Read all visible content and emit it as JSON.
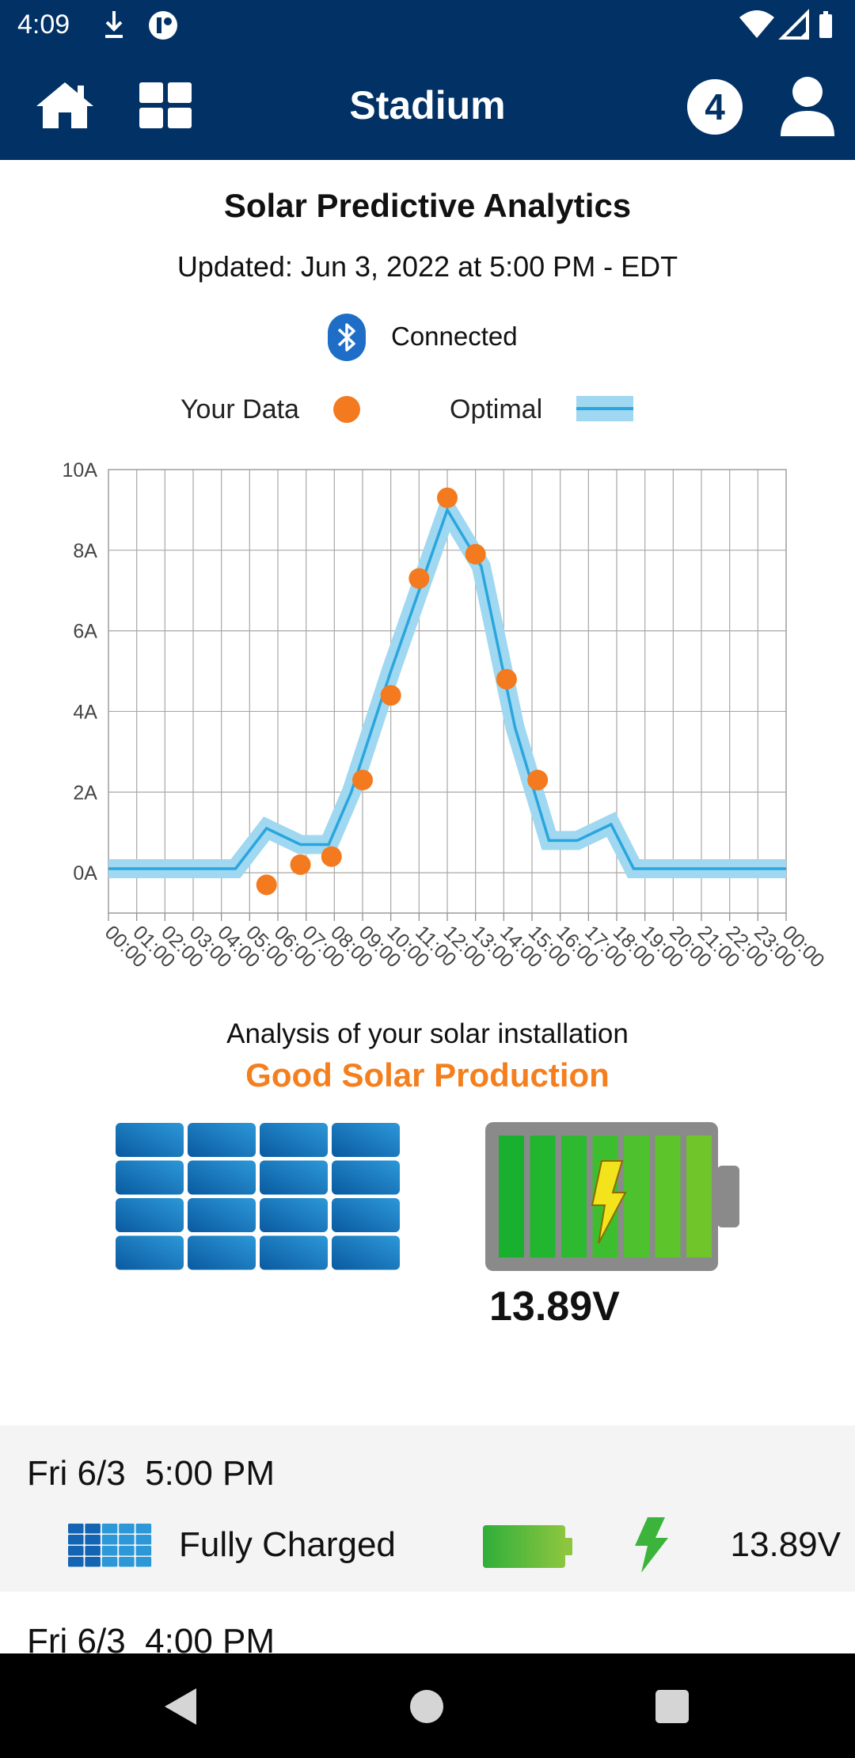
{
  "status_bar": {
    "time": "4:09",
    "left_icons": [
      "download-icon",
      "app-notification-icon"
    ],
    "right_icons": [
      "wifi-icon",
      "cell-signal-icon",
      "battery-icon"
    ]
  },
  "app_bar": {
    "title": "Stadium",
    "notification_count": "4",
    "icons": [
      "home-icon",
      "grid-icon",
      "user-icon"
    ]
  },
  "header": {
    "title": "Solar Predictive Analytics",
    "updated": "Updated: Jun 3, 2022 at 5:00 PM - EDT",
    "connection_status": "Connected",
    "connection_icon": "bluetooth-icon"
  },
  "legend": {
    "your_data_label": "Your Data",
    "optimal_label": "Optimal"
  },
  "colors": {
    "app_bar": "#023165",
    "your_data": "#f47a1f",
    "optimal_band": "#9fd8f0",
    "optimal_line": "#2aa5de",
    "verdict": "#f47f1e",
    "battery_green": "#3cb43c"
  },
  "chart_data": {
    "type": "line",
    "ylim": [
      -1,
      10
    ],
    "yticks": [
      "0A",
      "2A",
      "4A",
      "6A",
      "8A",
      "10A"
    ],
    "yticks_values": [
      0,
      2,
      4,
      6,
      8,
      10
    ],
    "categories": [
      "00:00",
      "01:00",
      "02:00",
      "03:00",
      "04:00",
      "05:00",
      "06:00",
      "07:00",
      "08:00",
      "09:00",
      "10:00",
      "11:00",
      "12:00",
      "13:00",
      "14:00",
      "15:00",
      "16:00",
      "17:00",
      "18:00",
      "19:00",
      "20:00",
      "21:00",
      "22:00",
      "23:00",
      "00:00"
    ],
    "grid": true,
    "series": [
      {
        "name": "Optimal",
        "kind": "band-line",
        "points": [
          [
            0,
            0.1
          ],
          [
            4.5,
            0.1
          ],
          [
            5.6,
            1.1
          ],
          [
            6.8,
            0.7
          ],
          [
            7.8,
            0.7
          ],
          [
            8.6,
            2.0
          ],
          [
            10,
            5.0
          ],
          [
            12,
            9.0
          ],
          [
            13.2,
            7.6
          ],
          [
            14.4,
            3.6
          ],
          [
            15.6,
            0.8
          ],
          [
            16.6,
            0.8
          ],
          [
            17.8,
            1.2
          ],
          [
            18.6,
            0.1
          ],
          [
            24,
            0.1
          ]
        ]
      },
      {
        "name": "Your Data",
        "kind": "scatter",
        "points": [
          [
            5.6,
            -0.3
          ],
          [
            6.8,
            0.2
          ],
          [
            7.9,
            0.4
          ],
          [
            9.0,
            2.3
          ],
          [
            10.0,
            4.4
          ],
          [
            11.0,
            7.3
          ],
          [
            12.0,
            9.3
          ],
          [
            13.0,
            7.9
          ],
          [
            14.1,
            4.8
          ],
          [
            15.2,
            2.3
          ]
        ]
      }
    ]
  },
  "analysis": {
    "label": "Analysis of your solar installation",
    "verdict": "Good Solar Production",
    "voltage": "13.89V",
    "battery_level": 1.0
  },
  "history": [
    {
      "date": "Fri 6/3",
      "time": "5:00 PM",
      "status": "Fully Charged",
      "voltage": "13.89V"
    },
    {
      "date": "Fri 6/3",
      "time": "4:00 PM"
    }
  ]
}
